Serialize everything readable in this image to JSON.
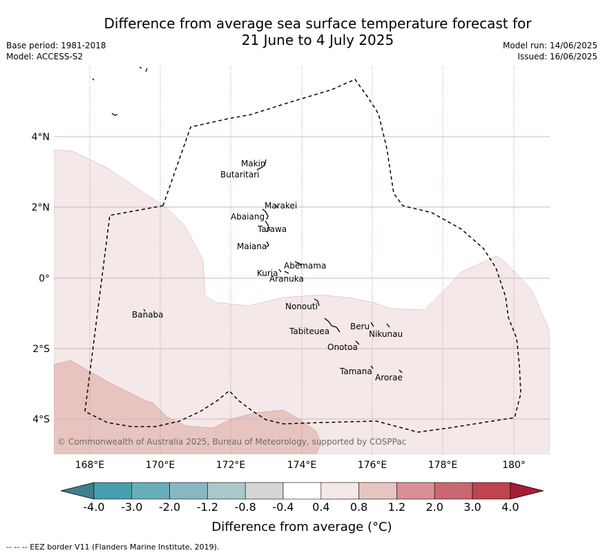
{
  "title_line1": "Difference from average sea surface temperature forecast for",
  "title_line2": "21 June to 4 July 2025",
  "base_period": "Base period: 1981-2018",
  "model": "Model: ACCESS-S2",
  "model_run": "Model run: 14/06/2025",
  "issued": "Issued: 16/06/2025",
  "lon_ticks": [
    "168°E",
    "170°E",
    "172°E",
    "174°E",
    "176°E",
    "178°E",
    "180°"
  ],
  "lat_ticks": [
    "4°N",
    "2°N",
    "0°",
    "2°S",
    "4°S"
  ],
  "places": {
    "makin": "Makin",
    "butaritari": "Butaritari",
    "marakei": "Marakei",
    "abaiang": "Abaiang",
    "tarawa": "Tarawa",
    "maiana": "Maiana",
    "abemama": "Abemama",
    "kuria": "Kuria",
    "aranuka": "Aranuka",
    "nonouti": "Nonouti",
    "banaba": "Banaba",
    "beru": "Beru",
    "tabiteuea": "Tabiteuea",
    "nikunau": "Nikunau",
    "onotoa": "Onotoa",
    "tamana": "Tamana",
    "arorae": "Arorae"
  },
  "copyright": "© Commonwealth of Australia 2025, Bureau of Meteorology, supported by COSPPac",
  "colorbar": {
    "ticks": [
      "-4.0",
      "-3.0",
      "-2.0",
      "-1.2",
      "-0.8",
      "-0.4",
      "0.4",
      "0.8",
      "1.2",
      "2.0",
      "3.0",
      "4.0"
    ],
    "colors": [
      "#3d7f8c",
      "#479fae",
      "#69adbb",
      "#88b7c2",
      "#a8c8cc",
      "#d3d5d6",
      "#ffffff",
      "#f5e8e8",
      "#e8c4c0",
      "#d98f95",
      "#cb6872",
      "#c0434f",
      "#a71d36"
    ],
    "label": "Difference from average ($^\\circ$C)",
    "label_display": "Difference from average (°C)"
  },
  "footer": "--  --  -- EEZ border V11 (Flanders Marine Institute, 2019).",
  "fill_colors": {
    "light": "#f5e8e8",
    "medium": "#e8c4c0",
    "grid": "#c9b9c0",
    "lon_lines": "#a88aa0",
    "border": "#000000"
  }
}
